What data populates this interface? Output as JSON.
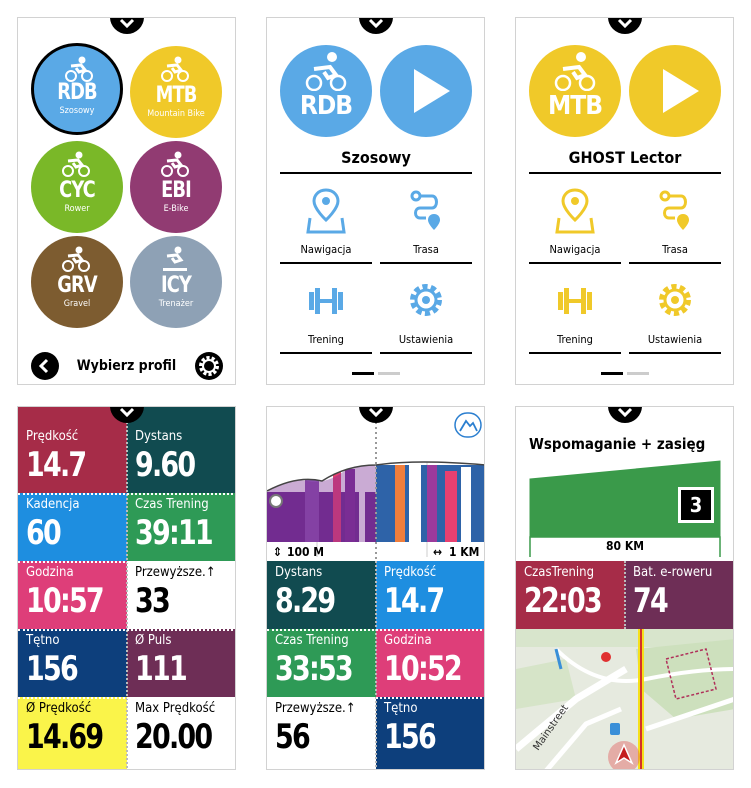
{
  "profiles_screen": {
    "profiles": [
      {
        "code": "RDB",
        "name": "Szosowy",
        "color": "#5aa9e6",
        "selected": true
      },
      {
        "code": "MTB",
        "name": "Mountain Bike",
        "color": "#f0c929"
      },
      {
        "code": "CYC",
        "name": "Rower",
        "color": "#7ab828"
      },
      {
        "code": "EBI",
        "name": "E-Bike",
        "color": "#913b72"
      },
      {
        "code": "GRV",
        "name": "Gravel",
        "color": "#7d5c30"
      },
      {
        "code": "ICY",
        "name": "Trenażer",
        "color": "#8ea1b5"
      }
    ],
    "footer_title": "Wybierz profil"
  },
  "rdb_screen": {
    "code": "RDB",
    "title": "Szosowy",
    "accent": "#5aa9e6",
    "menu": {
      "nav": "Nawigacja",
      "route": "Trasa",
      "training": "Trening",
      "settings": "Ustawienia"
    }
  },
  "mtb_screen": {
    "code": "MTB",
    "title": "GHOST Lector",
    "accent": "#f0c929",
    "menu": {
      "nav": "Nawigacja",
      "route": "Trasa",
      "training": "Trening",
      "settings": "Ustawienia"
    }
  },
  "data_screen_1": {
    "tiles": [
      {
        "label": "Prędkość",
        "value": "14.7"
      },
      {
        "label": "Dystans",
        "value": "9.60"
      },
      {
        "label": "Kadencja",
        "value": "60"
      },
      {
        "label": "Czas Trening",
        "value": "39:11"
      },
      {
        "label": "Godzina",
        "value": "10:57"
      },
      {
        "label": "Przewyższe.↑",
        "value": "33"
      },
      {
        "label": "Tętno",
        "value": "156"
      },
      {
        "label": "Ø Puls",
        "value": "111"
      },
      {
        "label": "Ø Prędkość",
        "value": "14.69"
      },
      {
        "label": "Max Prędkość",
        "value": "20.00"
      }
    ]
  },
  "data_screen_2": {
    "scale_left": "100 M",
    "scale_right": "1 KM",
    "tiles": [
      {
        "label": "Dystans",
        "value": "8.29"
      },
      {
        "label": "Prędkość",
        "value": "14.7"
      },
      {
        "label": "Czas Trening",
        "value": "33:53"
      },
      {
        "label": "Godzina",
        "value": "10:52"
      },
      {
        "label": "Przewyższe.↑",
        "value": "56"
      },
      {
        "label": "Tętno",
        "value": "156"
      }
    ]
  },
  "data_screen_3": {
    "title": "Wspomaganie + zasięg",
    "assist_level": "3",
    "range": "80 KM",
    "tiles": [
      {
        "label": "CzasTrening",
        "value": "22:03"
      },
      {
        "label": "Bat. e-roweru",
        "value": "74"
      }
    ],
    "street_label": "Mainstreet"
  }
}
